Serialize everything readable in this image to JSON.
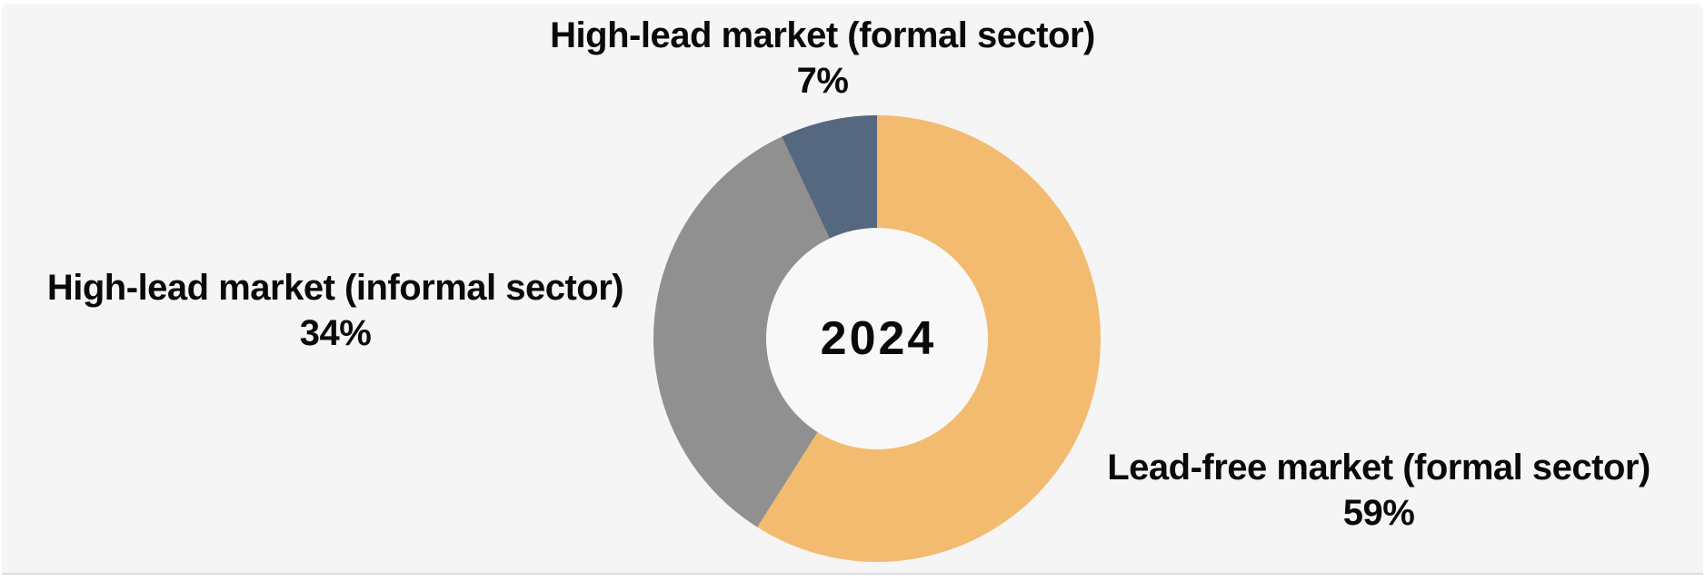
{
  "chart_data": {
    "type": "pie",
    "donut": true,
    "center_label": "2024",
    "start_angle_deg": 0,
    "direction": "clockwise",
    "hole_color": "#f8f8f9",
    "legend_position": "none",
    "slices": [
      {
        "label": "Lead-free market (formal sector)",
        "value": 59,
        "pct_label": "59%",
        "color": "#F3BB70",
        "label_position": "right"
      },
      {
        "label": "High-lead market (informal sector)",
        "value": 34,
        "pct_label": "34%",
        "color": "#909090",
        "label_position": "left"
      },
      {
        "label": "High-lead market (formal sector)",
        "value": 7,
        "pct_label": "7%",
        "color": "#566780",
        "label_position": "top"
      }
    ]
  }
}
